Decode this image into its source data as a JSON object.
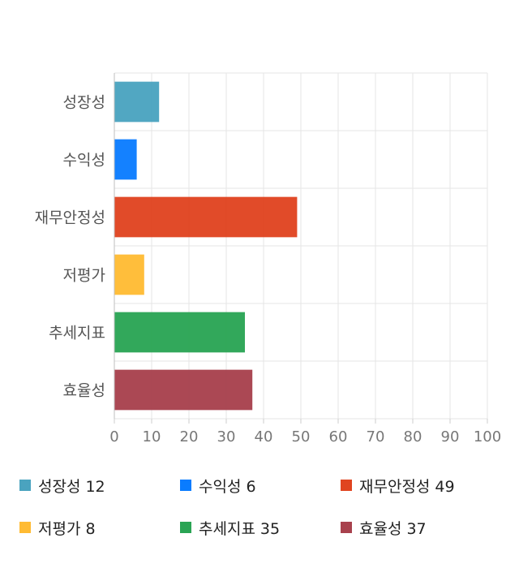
{
  "chart_data": {
    "type": "bar",
    "orientation": "horizontal",
    "categories": [
      "성장성",
      "수익성",
      "재무안정성",
      "저평가",
      "추세지표",
      "효율성"
    ],
    "values": [
      12,
      6,
      49,
      8,
      35,
      37
    ],
    "colors": [
      "#4aa3bf",
      "#0a7cff",
      "#e04420",
      "#ffbb33",
      "#2aa454",
      "#a8414d"
    ],
    "xlim": [
      0,
      100
    ],
    "xticks": [
      0,
      10,
      20,
      30,
      40,
      50,
      60,
      70,
      80,
      90,
      100
    ],
    "grid": true,
    "legend_position": "bottom"
  },
  "legend": [
    {
      "label": "성장성",
      "value": "12",
      "color": "#4aa3bf"
    },
    {
      "label": "수익성",
      "value": "6",
      "color": "#0a7cff"
    },
    {
      "label": "재무안정성",
      "value": "49",
      "color": "#e04420"
    },
    {
      "label": "저평가",
      "value": "8",
      "color": "#ffbb33"
    },
    {
      "label": "추세지표",
      "value": "35",
      "color": "#2aa454"
    },
    {
      "label": "효율성",
      "value": "37",
      "color": "#a8414d"
    }
  ]
}
